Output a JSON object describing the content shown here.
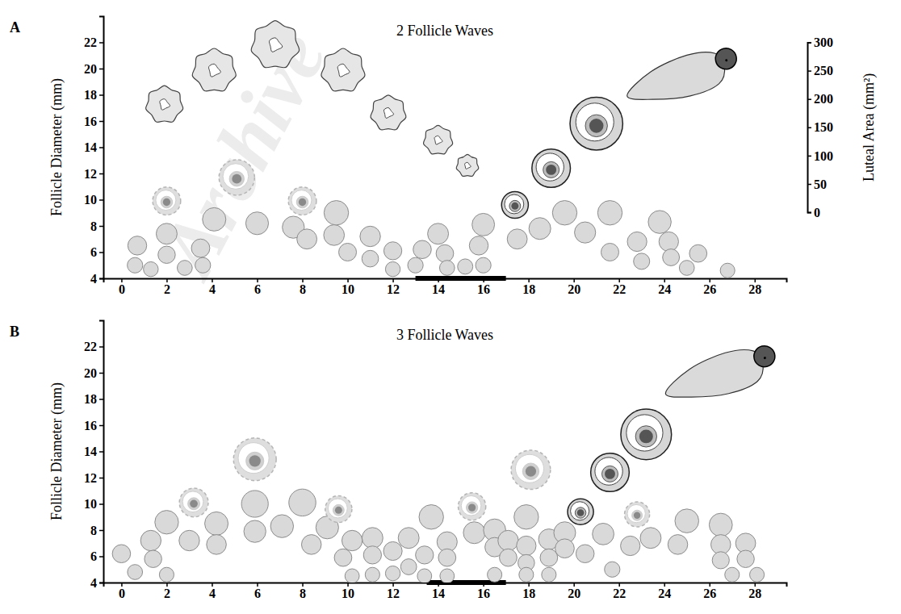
{
  "chart_data": [
    {
      "label": "A",
      "type": "scatter",
      "title": "2 Follicle Waves",
      "ylabel": "Follicle Diameter (mm)",
      "y2label": "Luteal Area (mm²)",
      "annotations": [
        "Archive"
      ],
      "xlim": [
        -0.8,
        29.4
      ],
      "xticks": [
        0,
        2,
        4,
        6,
        8,
        10,
        12,
        14,
        16,
        18,
        20,
        22,
        24,
        26,
        28
      ],
      "ylim": [
        4,
        24
      ],
      "yticks": [
        4,
        6,
        8,
        10,
        12,
        14,
        16,
        18,
        20,
        22
      ],
      "y2lim": [
        0,
        300
      ],
      "y2ticks": [
        0,
        50,
        100,
        150,
        200,
        250,
        300
      ],
      "x_band": [
        13,
        17
      ],
      "series": [
        {
          "marker": "circle",
          "color": "#d9d9d9",
          "x": [
            0.7,
            0.6,
            1.3,
            2.0,
            2.0,
            2.8,
            3.5,
            3.6,
            4.1,
            6.0,
            7.6,
            8.2,
            9.5,
            9.4,
            10.0,
            11.0,
            11.0,
            12.0,
            12.0,
            13.0,
            13.3,
            14.0,
            14.3,
            14.4,
            15.2,
            15.8,
            16.0,
            16.0,
            17.5,
            18.5,
            19.6,
            20.5,
            21.6,
            21.6,
            22.8,
            23.0,
            23.8,
            24.2,
            24.3,
            25.0,
            25.5,
            26.8
          ],
          "values": [
            6.5,
            5.0,
            4.7,
            7.4,
            5.8,
            4.8,
            6.3,
            5.0,
            8.5,
            8.2,
            7.9,
            7.0,
            9.0,
            7.3,
            6.0,
            7.2,
            5.5,
            6.1,
            4.7,
            5.0,
            6.2,
            7.4,
            5.9,
            4.8,
            4.9,
            6.5,
            8.1,
            5.0,
            7.0,
            7.8,
            9.0,
            7.5,
            9.0,
            6.0,
            6.8,
            5.3,
            8.3,
            6.8,
            5.6,
            4.8,
            5.9,
            4.6
          ]
        },
        {
          "marker": "ring",
          "line_style": "dashed",
          "color": "#dedede",
          "x": [
            2.0,
            5.1,
            8.0
          ],
          "values": [
            9.9,
            11.7,
            9.9
          ]
        },
        {
          "marker": "ring",
          "line_style": "solid",
          "color": "#d6d6d6",
          "x": [
            17.4,
            19.0,
            21.0
          ],
          "values": [
            9.6,
            12.4,
            15.8
          ]
        },
        {
          "marker": "teardrop",
          "color": "#dadada",
          "x": [
            24.6
          ],
          "values": [
            19.2
          ]
        },
        {
          "marker": "blob",
          "axis": "y2",
          "color": "#e6e6e6",
          "x": [
            1.9,
            4.1,
            6.8,
            9.8,
            11.8,
            14.0,
            15.3
          ],
          "values": [
            190,
            250,
            295,
            250,
            175,
            127,
            82
          ]
        }
      ]
    },
    {
      "label": "B",
      "type": "scatter",
      "title": "3 Follicle Waves",
      "xlim": [
        -0.8,
        29.4
      ],
      "xticks": [
        0,
        2,
        4,
        6,
        8,
        10,
        12,
        14,
        16,
        18,
        20,
        22,
        24,
        26,
        28
      ],
      "ylim": [
        4,
        24
      ],
      "yticks": [
        4,
        6,
        8,
        10,
        12,
        14,
        16,
        18,
        20,
        22
      ],
      "ylabel": "Follicle Diameter (mm)",
      "x_band": [
        13.5,
        17
      ],
      "series": [
        {
          "marker": "circle",
          "color": "#d9d9d9",
          "x": [
            0.0,
            0.6,
            1.3,
            1.4,
            2.0,
            2.0,
            3.0,
            4.2,
            4.2,
            5.9,
            5.9,
            7.1,
            8.0,
            8.4,
            9.1,
            9.8,
            10.2,
            10.2,
            11.1,
            11.1,
            11.1,
            12.0,
            12.0,
            12.7,
            12.7,
            13.4,
            13.4,
            13.7,
            14.4,
            14.4,
            14.4,
            15.6,
            16.5,
            16.5,
            16.5,
            17.1,
            17.1,
            17.9,
            17.9,
            17.9,
            17.9,
            18.9,
            18.9,
            18.9,
            19.6,
            19.6,
            20.5,
            21.3,
            21.7,
            22.5,
            23.4,
            24.6,
            25.0,
            26.5,
            26.5,
            26.5,
            27.6,
            27.6,
            27.0,
            28.1
          ],
          "values": [
            6.2,
            4.8,
            7.2,
            5.8,
            8.6,
            4.6,
            7.2,
            8.5,
            6.9,
            10.0,
            7.9,
            8.3,
            10.1,
            6.9,
            8.2,
            5.9,
            7.2,
            4.5,
            7.4,
            6.1,
            4.6,
            6.4,
            4.7,
            7.4,
            5.2,
            6.1,
            4.5,
            9.0,
            7.1,
            5.9,
            4.5,
            7.8,
            8.0,
            6.7,
            4.6,
            7.2,
            5.9,
            9.0,
            6.8,
            5.5,
            4.6,
            7.3,
            5.9,
            4.6,
            7.8,
            6.6,
            6.2,
            7.7,
            5.0,
            6.8,
            7.4,
            6.9,
            8.7,
            8.4,
            6.9,
            5.7,
            7.0,
            5.8,
            4.6,
            4.6
          ]
        },
        {
          "marker": "ring",
          "line_style": "dashed",
          "color": "#dedede",
          "x": [
            3.2,
            5.9,
            9.6,
            15.5,
            18.1,
            22.8
          ],
          "values": [
            10.1,
            13.4,
            9.6,
            9.8,
            12.6,
            9.2
          ]
        },
        {
          "marker": "ring",
          "line_style": "solid",
          "color": "#d6d6d6",
          "x": [
            20.3,
            21.6,
            23.2
          ],
          "values": [
            9.4,
            12.4,
            15.3
          ]
        },
        {
          "marker": "teardrop",
          "color": "#dadada",
          "x": [
            26.3
          ],
          "values": [
            19.7
          ]
        }
      ]
    }
  ]
}
